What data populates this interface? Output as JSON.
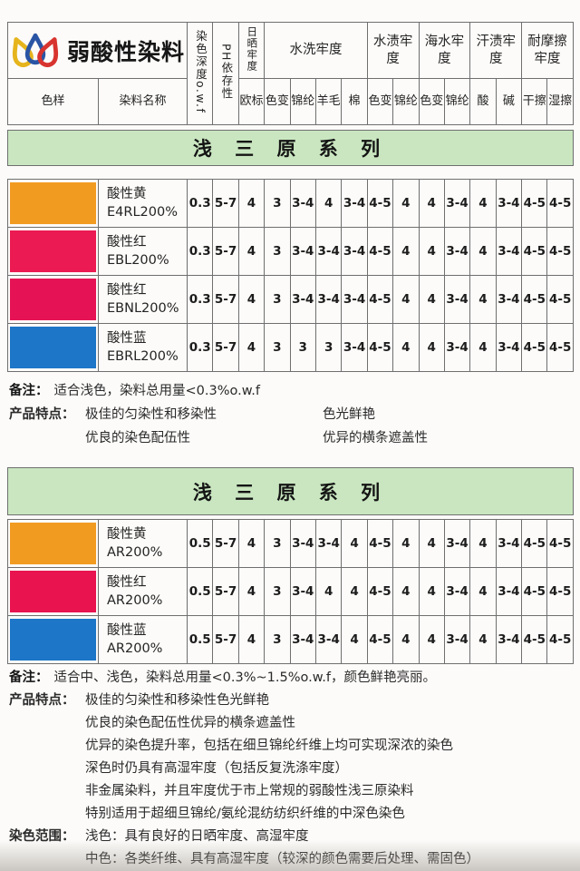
{
  "brand": {
    "title": "弱酸性染料",
    "icon": "three-droplets",
    "logo_colors": [
      "#e6b41c",
      "#2a55a5",
      "#d8342f"
    ]
  },
  "colors": {
    "banner_bg": "#c9e6c0",
    "grid_border": "#6f6f6f",
    "page_bg": "#fcfbf9"
  },
  "header": {
    "sample": "色样",
    "dye_name": "染料名称",
    "depth": "染色深度o.w.f",
    "ph": "PH依存性",
    "sun": "日晒牢度",
    "sun_sub": "欧标",
    "wash": "水洗牢度",
    "wash_subs": [
      "色变",
      "锦纶",
      "羊毛",
      "棉"
    ],
    "stain": "水渍牢度",
    "stain_subs": [
      "色变",
      "锦纶"
    ],
    "sea": "海水牢度",
    "sea_subs": [
      "色变",
      "锦纶"
    ],
    "sweat": "汗渍牢度",
    "sweat_subs": [
      "酸",
      "碱"
    ],
    "rub": "耐摩擦牢度",
    "rub_subs": [
      "干擦",
      "湿擦"
    ]
  },
  "tables": [
    {
      "banner": "浅  三  原  系  列",
      "rows": [
        {
          "swatch_color": "#f29b21",
          "name_line1": "酸性黄",
          "name_line2": "E4RL200%",
          "values": [
            "0.3",
            "5-7",
            "4",
            "3",
            "3-4",
            "4",
            "3-4",
            "4-5",
            "4",
            "4",
            "3-4",
            "4",
            "3-4",
            "4-5",
            "4-5"
          ]
        },
        {
          "swatch_color": "#ec1a52",
          "name_line1": "酸性红",
          "name_line2": "EBL200%",
          "values": [
            "0.3",
            "5-7",
            "4",
            "3",
            "3-4",
            "3-4",
            "3-4",
            "4-5",
            "4",
            "4",
            "3-4",
            "4",
            "3-4",
            "4-5",
            "4-5"
          ]
        },
        {
          "swatch_color": "#e51355",
          "name_line1": "酸性红",
          "name_line2": "EBNL200%",
          "values": [
            "0.3",
            "5-7",
            "4",
            "3",
            "3-4",
            "3-4",
            "3-4",
            "4-5",
            "4",
            "4",
            "3-4",
            "4",
            "3-4",
            "4-5",
            "4-5"
          ]
        },
        {
          "swatch_color": "#1d76c7",
          "name_line1": "酸性蓝",
          "name_line2": "EBRL200%",
          "values": [
            "0.3",
            "5-7",
            "4",
            "3",
            "3",
            "3",
            "3-4",
            "4-5",
            "4",
            "4",
            "3-4",
            "4",
            "3-4",
            "4-5",
            "4-5"
          ]
        }
      ]
    },
    {
      "banner": "浅  三  原  系  列",
      "rows": [
        {
          "swatch_color": "#f29b21",
          "name_line1": "酸性黄",
          "name_line2": "AR200%",
          "values": [
            "0.5",
            "5-7",
            "4",
            "3",
            "3-4",
            "3-4",
            "4",
            "4-5",
            "4",
            "4",
            "3-4",
            "4",
            "3-4",
            "4-5",
            "4-5"
          ]
        },
        {
          "swatch_color": "#e8134f",
          "name_line1": "酸性红",
          "name_line2": "AR200%",
          "values": [
            "0.5",
            "5-7",
            "4",
            "3",
            "3-4",
            "4",
            "4",
            "4-5",
            "4",
            "4",
            "3-4",
            "4",
            "3-4",
            "4-5",
            "4-5"
          ]
        },
        {
          "swatch_color": "#1d76c7",
          "name_line1": "酸性蓝",
          "name_line2": "AR200%",
          "values": [
            "0.5",
            "5-7",
            "4",
            "3",
            "3-4",
            "3-4",
            "4",
            "4-5",
            "4",
            "4",
            "3-4",
            "4",
            "3-4",
            "4-5",
            "4-5"
          ]
        }
      ]
    }
  ],
  "notes1": {
    "remark_label": "备注：",
    "remark": "适合浅色，染料总用量<0.3%o.w.f",
    "features_label": "产品特点：",
    "features_left": [
      "极佳的匀染性和移染性",
      "优良的染色配伍性"
    ],
    "features_right": [
      "色光鲜艳",
      "优异的横条遮盖性"
    ]
  },
  "notes2": {
    "remark_label": "备注：",
    "remark": "适合中、浅色，染料总用量<0.3%~1.5%o.w.f，颜色鲜艳亮丽。",
    "features_label": "产品特点：",
    "features": [
      "极佳的匀染性和移染性色光鲜艳",
      "优良的染色配伍性优异的横条遮盖性",
      "优异的染色提升率，包括在细旦锦纶纤维上均可实现深浓的染色",
      "深色时仍具有高湿牢度（包括反复洗涤牢度）",
      "非金属染料，并且牢度优于市上常规的弱酸性浅三原染料",
      "特别适用于超细旦锦纶/氨纶混纺纺织纤维的中深色染色"
    ],
    "scope_label": "染色范围：",
    "scope": [
      "浅色：具有良好的日晒牢度、高湿牢度",
      "中色：各类纤维、具有高湿牢度（较深的颜色需要后处理、需固色）"
    ]
  }
}
